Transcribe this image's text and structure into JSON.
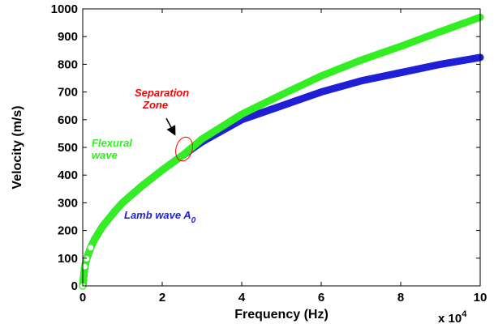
{
  "chart_data": {
    "type": "scatter",
    "title": "",
    "xlabel": "Frequency (Hz)",
    "ylabel": "Velocity (m/s)",
    "x_multiplier_base": "x 10",
    "x_multiplier_exp": "4",
    "xlim": [
      0,
      100000
    ],
    "ylim": [
      0,
      1000
    ],
    "x_ticks": [
      0,
      20000,
      40000,
      60000,
      80000,
      100000
    ],
    "x_tick_labels": [
      "0",
      "2",
      "4",
      "6",
      "8",
      "10"
    ],
    "y_ticks": [
      0,
      100,
      200,
      300,
      400,
      500,
      600,
      700,
      800,
      900,
      1000
    ],
    "y_tick_labels": [
      "0",
      "100",
      "200",
      "300",
      "400",
      "500",
      "600",
      "700",
      "800",
      "900",
      "1000"
    ],
    "grid": false,
    "series": [
      {
        "label_prefix": "Lamb wave A",
        "label_sub": "0",
        "color": "#1f1fd6",
        "points": [
          [
            0,
            0
          ],
          [
            500,
            70
          ],
          [
            1000,
            98
          ],
          [
            2000,
            138
          ],
          [
            3000,
            168
          ],
          [
            5000,
            215
          ],
          [
            8000,
            268
          ],
          [
            10000,
            300
          ],
          [
            15000,
            362
          ],
          [
            20000,
            418
          ],
          [
            25000,
            470
          ],
          [
            30000,
            520
          ],
          [
            40000,
            600
          ],
          [
            50000,
            650
          ],
          [
            60000,
            700
          ],
          [
            70000,
            740
          ],
          [
            80000,
            770
          ],
          [
            90000,
            800
          ],
          [
            100000,
            825
          ]
        ]
      },
      {
        "label_prefix": "Flexural",
        "label_line2": "wave",
        "color": "#33ee22",
        "points": [
          [
            0,
            0
          ],
          [
            500,
            70
          ],
          [
            1000,
            98
          ],
          [
            2000,
            138
          ],
          [
            3000,
            168
          ],
          [
            5000,
            215
          ],
          [
            8000,
            268
          ],
          [
            10000,
            300
          ],
          [
            15000,
            362
          ],
          [
            20000,
            418
          ],
          [
            25000,
            470
          ],
          [
            30000,
            530
          ],
          [
            40000,
            620
          ],
          [
            50000,
            690
          ],
          [
            60000,
            758
          ],
          [
            70000,
            815
          ],
          [
            80000,
            865
          ],
          [
            90000,
            918
          ],
          [
            100000,
            970
          ]
        ]
      }
    ],
    "annotations": [
      {
        "text_line1": "Separation",
        "text_line2": "Zone",
        "color": "#ff0000",
        "target": [
          25500,
          495
        ]
      }
    ]
  }
}
